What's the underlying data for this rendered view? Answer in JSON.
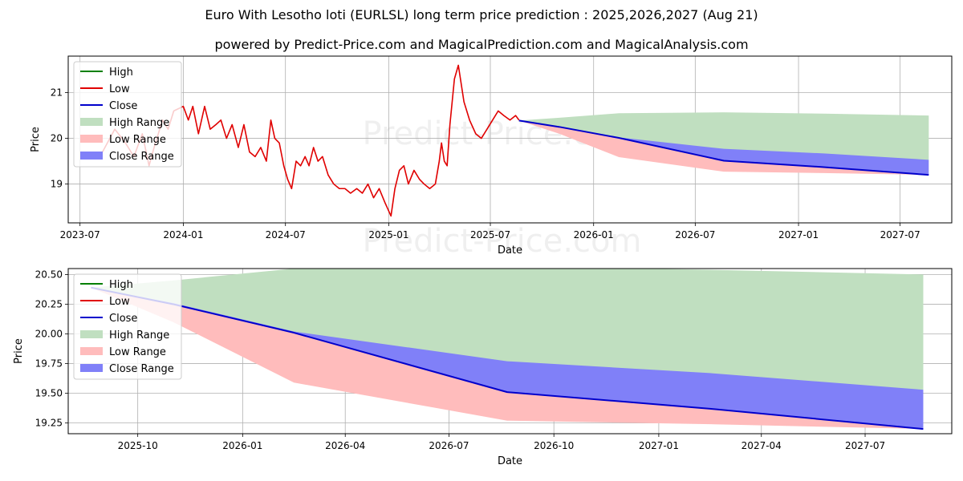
{
  "title": "Euro With Lesotho loti (EURLSL) long term price prediction : 2025,2026,2027 (Aug 21)",
  "subtitle": "powered by Predict-Price.com and MagicalPrediction.com and MagicalAnalysis.com",
  "watermark": "Predict-Price.com",
  "colors": {
    "high": "#008000",
    "low": "#e00000",
    "close": "#0000cc",
    "high_range": "#c0dfc0",
    "low_range": "#ffbcbc",
    "close_range": "#8080f8",
    "grid": "#b0b0b0"
  },
  "chart_data": [
    {
      "type": "line",
      "xlabel": "Date",
      "ylabel": "Price",
      "legend_position": "top-left",
      "grid": true,
      "xlim": [
        "2023-06-10",
        "2027-10-01"
      ],
      "ylim": [
        18.15,
        21.8
      ],
      "x_ticks": [
        "2023-07",
        "2024-01",
        "2024-07",
        "2025-01",
        "2025-07",
        "2026-01",
        "2026-07",
        "2027-01",
        "2027-07"
      ],
      "y_ticks": [
        19,
        20,
        21
      ],
      "legend": [
        "High",
        "Low",
        "Close",
        "High Range",
        "Low Range",
        "Close Range"
      ],
      "historical_low": {
        "x": [
          "2023-08-10",
          "2023-09-01",
          "2023-09-20",
          "2023-10-05",
          "2023-10-20",
          "2023-11-01",
          "2023-11-10",
          "2023-11-25",
          "2023-12-05",
          "2023-12-15",
          "2024-01-01",
          "2024-01-10",
          "2024-01-18",
          "2024-01-28",
          "2024-02-08",
          "2024-02-18",
          "2024-02-28",
          "2024-03-08",
          "2024-03-18",
          "2024-03-28",
          "2024-04-08",
          "2024-04-18",
          "2024-04-28",
          "2024-05-08",
          "2024-05-18",
          "2024-05-28",
          "2024-06-05",
          "2024-06-12",
          "2024-06-20",
          "2024-06-28",
          "2024-07-05",
          "2024-07-12",
          "2024-07-20",
          "2024-07-28",
          "2024-08-05",
          "2024-08-12",
          "2024-08-20",
          "2024-08-28",
          "2024-09-05",
          "2024-09-15",
          "2024-09-25",
          "2024-10-05",
          "2024-10-15",
          "2024-10-25",
          "2024-11-05",
          "2024-11-15",
          "2024-11-25",
          "2024-12-05",
          "2024-12-15",
          "2024-12-25",
          "2025-01-05",
          "2025-01-12",
          "2025-01-20",
          "2025-01-28",
          "2025-02-05",
          "2025-02-15",
          "2025-02-25",
          "2025-03-05",
          "2025-03-15",
          "2025-03-25",
          "2025-04-01",
          "2025-04-05",
          "2025-04-10",
          "2025-04-15",
          "2025-04-20",
          "2025-04-28",
          "2025-05-05",
          "2025-05-15",
          "2025-05-25",
          "2025-06-05",
          "2025-06-15",
          "2025-06-25",
          "2025-07-05",
          "2025-07-15",
          "2025-07-25",
          "2025-08-05",
          "2025-08-15",
          "2025-08-21"
        ],
        "y": [
          19.7,
          20.2,
          19.9,
          19.6,
          20.1,
          19.4,
          19.8,
          20.4,
          20.2,
          20.6,
          20.7,
          20.4,
          20.7,
          20.1,
          20.7,
          20.2,
          20.3,
          20.4,
          20.0,
          20.3,
          19.8,
          20.3,
          19.7,
          19.6,
          19.8,
          19.5,
          20.4,
          20.0,
          19.9,
          19.4,
          19.1,
          18.9,
          19.5,
          19.4,
          19.6,
          19.4,
          19.8,
          19.5,
          19.6,
          19.2,
          19.0,
          18.9,
          18.9,
          18.8,
          18.9,
          18.8,
          19.0,
          18.7,
          18.9,
          18.6,
          18.3,
          18.9,
          19.3,
          19.4,
          19.0,
          19.3,
          19.1,
          19.0,
          18.9,
          19.0,
          19.5,
          19.9,
          19.5,
          19.4,
          20.3,
          21.3,
          21.6,
          20.8,
          20.4,
          20.1,
          20.0,
          20.2,
          20.4,
          20.6,
          20.5,
          20.4,
          20.5,
          20.4
        ]
      },
      "forecast": {
        "x": [
          "2025-08-21",
          "2025-11-01",
          "2026-02-15",
          "2026-08-21",
          "2027-02-15",
          "2027-08-21"
        ],
        "high_range": {
          "upper": [
            20.39,
            20.45,
            20.55,
            20.57,
            20.54,
            20.5
          ],
          "lower": [
            20.39,
            20.25,
            20.01,
            19.51,
            19.37,
            19.53
          ]
        },
        "low_range": {
          "upper": [
            20.39,
            20.25,
            20.01,
            19.51,
            19.37,
            19.2
          ],
          "lower": [
            20.39,
            20.1,
            19.59,
            19.27,
            19.24,
            19.2
          ]
        },
        "close_range": {
          "upper": [
            20.39,
            20.26,
            20.02,
            19.77,
            19.67,
            19.53
          ],
          "lower": [
            20.39,
            20.25,
            20.01,
            19.51,
            19.37,
            19.2
          ]
        },
        "close": [
          20.39,
          20.25,
          20.01,
          19.51,
          19.37,
          19.2
        ]
      }
    },
    {
      "type": "area",
      "xlabel": "Date",
      "ylabel": "Price",
      "legend_position": "top-left",
      "grid": true,
      "xlim": [
        "2025-08-01",
        "2027-09-15"
      ],
      "ylim": [
        19.16,
        20.55
      ],
      "x_ticks": [
        "2025-10",
        "2026-01",
        "2026-04",
        "2026-07",
        "2026-10",
        "2027-01",
        "2027-04",
        "2027-07"
      ],
      "y_ticks": [
        "19.25",
        "19.50",
        "19.75",
        "20.00",
        "20.25",
        "20.50"
      ],
      "legend": [
        "High",
        "Low",
        "Close",
        "High Range",
        "Low Range",
        "Close Range"
      ],
      "x": [
        "2025-08-21",
        "2025-11-01",
        "2026-02-15",
        "2026-08-21",
        "2027-02-15",
        "2027-08-21"
      ],
      "series": [
        {
          "name": "High Range",
          "upper": [
            20.39,
            20.45,
            20.55,
            20.57,
            20.54,
            20.5
          ],
          "lower": [
            20.39,
            20.25,
            20.01,
            19.51,
            19.37,
            19.53
          ]
        },
        {
          "name": "Low Range",
          "upper": [
            20.39,
            20.25,
            20.01,
            19.51,
            19.37,
            19.2
          ],
          "lower": [
            20.39,
            20.1,
            19.59,
            19.27,
            19.24,
            19.2
          ]
        },
        {
          "name": "Close Range",
          "upper": [
            20.39,
            20.26,
            20.02,
            19.77,
            19.67,
            19.53
          ],
          "lower": [
            20.39,
            20.25,
            20.01,
            19.51,
            19.37,
            19.2
          ]
        },
        {
          "name": "Close",
          "values": [
            20.39,
            20.25,
            20.01,
            19.51,
            19.37,
            19.2
          ]
        }
      ]
    }
  ]
}
